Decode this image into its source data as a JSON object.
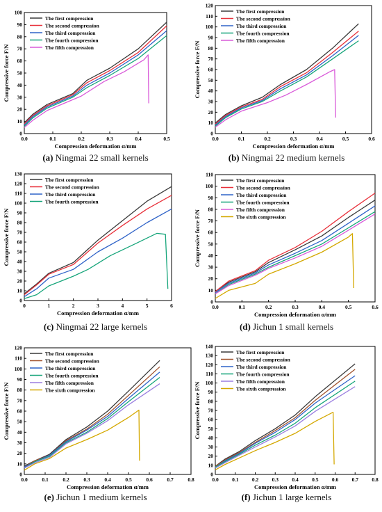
{
  "chart_data": [
    {
      "type": "line",
      "ylabel": "Compressive force F/N",
      "xlabel": "Compression deformation α/mm",
      "ylim": [
        0,
        100
      ],
      "yticks": [
        0,
        10,
        20,
        30,
        40,
        50,
        60,
        70,
        80,
        90,
        100
      ],
      "xlim": [
        0,
        0.5
      ],
      "xticks": [
        0.0,
        0.1,
        0.2,
        0.3,
        0.4,
        0.5
      ],
      "xdec": 1,
      "caption_letter": "(a)",
      "caption_text": " Ningmai 22 small kernels",
      "series": [
        {
          "name": "The first compression",
          "color": "#3a3a3a",
          "x": [
            0,
            0.03,
            0.08,
            0.17,
            0.22,
            0.3,
            0.4,
            0.5
          ],
          "y": [
            9,
            16,
            24,
            33,
            44,
            54,
            70,
            92
          ]
        },
        {
          "name": "The second compression",
          "color": "#e8303a",
          "x": [
            0,
            0.03,
            0.08,
            0.17,
            0.22,
            0.3,
            0.4,
            0.5
          ],
          "y": [
            8,
            15,
            23,
            32,
            42,
            52,
            67,
            89
          ]
        },
        {
          "name": "The third compression",
          "color": "#2f63c8",
          "x": [
            0,
            0.03,
            0.08,
            0.17,
            0.22,
            0.3,
            0.4,
            0.5
          ],
          "y": [
            7,
            14,
            22,
            31,
            40,
            50,
            65,
            85
          ]
        },
        {
          "name": "The fourth compression",
          "color": "#16a57a",
          "x": [
            0,
            0.03,
            0.08,
            0.17,
            0.22,
            0.3,
            0.4,
            0.5
          ],
          "y": [
            6,
            13,
            21,
            30,
            38,
            48,
            62,
            81
          ]
        },
        {
          "name": "The fifth compression",
          "color": "#d95bd9",
          "x": [
            0,
            0.03,
            0.08,
            0.2,
            0.28,
            0.35,
            0.42,
            0.435,
            0.437
          ],
          "y": [
            5,
            11,
            19,
            31,
            43,
            51,
            61,
            65,
            25
          ]
        }
      ]
    },
    {
      "type": "line",
      "ylabel": "Compressive force F/N",
      "xlabel": "Compression deformation α/mm",
      "ylim": [
        0,
        120
      ],
      "yticks": [
        0,
        10,
        20,
        30,
        40,
        50,
        60,
        70,
        80,
        90,
        100,
        110,
        120
      ],
      "xlim": [
        0,
        0.6
      ],
      "xticks": [
        0.0,
        0.1,
        0.2,
        0.3,
        0.4,
        0.5,
        0.6
      ],
      "xdec": 1,
      "caption_letter": "(b)",
      "caption_text": " Ningmai 22 medium kernels",
      "series": [
        {
          "name": "The first compression",
          "color": "#3a3a3a",
          "x": [
            0,
            0.04,
            0.1,
            0.18,
            0.25,
            0.35,
            0.45,
            0.55
          ],
          "y": [
            10,
            18,
            26,
            34,
            46,
            60,
            80,
            103
          ]
        },
        {
          "name": "The second compression",
          "color": "#e8303a",
          "x": [
            0,
            0.04,
            0.1,
            0.18,
            0.25,
            0.35,
            0.45,
            0.55
          ],
          "y": [
            9,
            17,
            25,
            32,
            44,
            57,
            76,
            96
          ]
        },
        {
          "name": "The third compression",
          "color": "#2f63c8",
          "x": [
            0,
            0.04,
            0.1,
            0.18,
            0.25,
            0.35,
            0.45,
            0.55
          ],
          "y": [
            8,
            16,
            24,
            31,
            42,
            55,
            73,
            92
          ]
        },
        {
          "name": "The fourth compression",
          "color": "#16a57a",
          "x": [
            0,
            0.04,
            0.1,
            0.18,
            0.25,
            0.35,
            0.45,
            0.55
          ],
          "y": [
            7,
            15,
            23,
            30,
            40,
            53,
            70,
            87
          ]
        },
        {
          "name": "The fifth compression",
          "color": "#d95bd9",
          "x": [
            0,
            0.04,
            0.1,
            0.2,
            0.27,
            0.35,
            0.44,
            0.458,
            0.462
          ],
          "y": [
            6,
            13,
            21,
            29,
            36,
            46,
            58,
            60,
            15
          ]
        }
      ]
    },
    {
      "type": "line",
      "ylabel": "Compressive force F/N",
      "xlabel": "Compression deformation α/mm",
      "ylim": [
        0,
        130
      ],
      "yticks": [
        0,
        10,
        20,
        30,
        40,
        50,
        60,
        70,
        80,
        90,
        100,
        110,
        120,
        130
      ],
      "xlim": [
        0,
        6
      ],
      "xticks": [
        0,
        1,
        2,
        3,
        4,
        5,
        6
      ],
      "xdec": 0,
      "caption_letter": "(c)",
      "caption_text": " Ningmai 22 large kernels",
      "series": [
        {
          "name": "The first compression",
          "color": "#3a3a3a",
          "x": [
            0,
            0.5,
            1,
            2,
            3,
            4,
            5,
            6
          ],
          "y": [
            7,
            17,
            28,
            39,
            62,
            82,
            102,
            117
          ]
        },
        {
          "name": "The second compression",
          "color": "#e8303a",
          "x": [
            0,
            0.5,
            1,
            2,
            3,
            4,
            5,
            6
          ],
          "y": [
            6,
            16,
            27,
            37,
            59,
            77,
            94,
            108
          ]
        },
        {
          "name": "The third compression",
          "color": "#2f63c8",
          "x": [
            0,
            0.5,
            1,
            2,
            3,
            4,
            5,
            6
          ],
          "y": [
            4,
            12,
            23,
            32,
            50,
            64,
            80,
            94
          ]
        },
        {
          "name": "The fourth compression",
          "color": "#16a57a",
          "x": [
            0,
            0.5,
            1,
            2,
            2.6,
            3.5,
            4.5,
            5.4,
            5.75,
            5.85
          ],
          "y": [
            2,
            6,
            15,
            25,
            32,
            46,
            58,
            69,
            68,
            12
          ]
        }
      ]
    },
    {
      "type": "line",
      "ylabel": "Compressive force F/N",
      "xlabel": "Compression deformation α/mm",
      "ylim": [
        0,
        110
      ],
      "yticks": [
        0,
        10,
        20,
        30,
        40,
        50,
        60,
        70,
        80,
        90,
        100,
        110
      ],
      "xlim": [
        0,
        0.6
      ],
      "xticks": [
        0.0,
        0.1,
        0.2,
        0.3,
        0.4,
        0.5,
        0.6
      ],
      "xdec": 1,
      "caption_letter": "(d)",
      "caption_text": " Jichun 1 small kernels",
      "series": [
        {
          "name": "The first compression",
          "color": "#3a3a3a",
          "x": [
            0,
            0.05,
            0.15,
            0.2,
            0.3,
            0.4,
            0.5,
            0.6
          ],
          "y": [
            9,
            17,
            26,
            34,
            45,
            57,
            73,
            88
          ]
        },
        {
          "name": "The second compression",
          "color": "#e8303a",
          "x": [
            0,
            0.05,
            0.15,
            0.2,
            0.3,
            0.4,
            0.5,
            0.6
          ],
          "y": [
            9,
            18,
            27,
            36,
            47,
            61,
            78,
            94
          ]
        },
        {
          "name": "The third compression",
          "color": "#2f63c8",
          "x": [
            0,
            0.05,
            0.15,
            0.2,
            0.3,
            0.4,
            0.5,
            0.6
          ],
          "y": [
            8,
            16,
            25,
            32,
            42,
            53,
            68,
            83
          ]
        },
        {
          "name": "The fourth compression",
          "color": "#16a57a",
          "x": [
            0,
            0.05,
            0.15,
            0.2,
            0.3,
            0.4,
            0.5,
            0.6
          ],
          "y": [
            7,
            15,
            24,
            30,
            40,
            50,
            64,
            78
          ]
        },
        {
          "name": "The fifth compression",
          "color": "#d95bd9",
          "x": [
            0,
            0.05,
            0.15,
            0.2,
            0.3,
            0.4,
            0.5,
            0.6
          ],
          "y": [
            7,
            14,
            23,
            29,
            38,
            48,
            62,
            76
          ]
        },
        {
          "name": "The sixth compression",
          "color": "#d4a800",
          "x": [
            0,
            0.05,
            0.15,
            0.2,
            0.3,
            0.4,
            0.5,
            0.515,
            0.52
          ],
          "y": [
            3,
            10,
            16,
            24,
            33,
            43,
            56,
            59,
            12
          ]
        }
      ]
    },
    {
      "type": "line",
      "ylabel": "Compressive force F/N",
      "xlabel": "Compression deformation α/mm",
      "ylim": [
        0,
        120
      ],
      "yticks": [
        0,
        10,
        20,
        30,
        40,
        50,
        60,
        70,
        80,
        90,
        100,
        110,
        120
      ],
      "xlim": [
        0,
        0.8
      ],
      "xticks": [
        0.0,
        0.1,
        0.2,
        0.3,
        0.4,
        0.5,
        0.6,
        0.7,
        0.8
      ],
      "xdec": 1,
      "caption_letter": "(e)",
      "caption_text": " Jichun 1 medium kernels",
      "series": [
        {
          "name": "The first compression",
          "color": "#3a3a3a",
          "x": [
            0,
            0.05,
            0.12,
            0.2,
            0.3,
            0.4,
            0.5,
            0.65
          ],
          "y": [
            8,
            13,
            19,
            33,
            45,
            60,
            79,
            108
          ]
        },
        {
          "name": "The second compression",
          "color": "#a0522d",
          "x": [
            0,
            0.05,
            0.12,
            0.2,
            0.3,
            0.4,
            0.5,
            0.65
          ],
          "y": [
            7,
            13,
            18,
            32,
            43,
            57,
            75,
            102
          ]
        },
        {
          "name": "The third compression",
          "color": "#2f63c8",
          "x": [
            0,
            0.05,
            0.12,
            0.2,
            0.3,
            0.4,
            0.5,
            0.65
          ],
          "y": [
            7,
            12,
            18,
            31,
            42,
            55,
            72,
            97
          ]
        },
        {
          "name": "The fourth compression",
          "color": "#16a57a",
          "x": [
            0,
            0.05,
            0.12,
            0.2,
            0.3,
            0.4,
            0.5,
            0.65
          ],
          "y": [
            6,
            12,
            17,
            30,
            40,
            53,
            69,
            92
          ]
        },
        {
          "name": "The fifth compression",
          "color": "#9b7fe0",
          "x": [
            0,
            0.05,
            0.12,
            0.2,
            0.3,
            0.4,
            0.5,
            0.65
          ],
          "y": [
            6,
            11,
            16,
            29,
            39,
            51,
            66,
            86
          ]
        },
        {
          "name": "The sixth compression",
          "color": "#d4a800",
          "x": [
            0,
            0.05,
            0.12,
            0.2,
            0.3,
            0.4,
            0.5,
            0.55,
            0.553
          ],
          "y": [
            4,
            10,
            15,
            25,
            33,
            42,
            54,
            61,
            13
          ]
        }
      ]
    },
    {
      "type": "line",
      "ylabel": "Compressive force F/N",
      "xlabel": "Compression deformation α/mm",
      "ylim": [
        0,
        140
      ],
      "yticks": [
        0,
        10,
        20,
        30,
        40,
        50,
        60,
        70,
        80,
        90,
        100,
        110,
        120,
        130,
        140
      ],
      "xlim": [
        0,
        0.8
      ],
      "xticks": [
        0.0,
        0.1,
        0.2,
        0.3,
        0.4,
        0.5,
        0.6,
        0.7,
        0.8
      ],
      "xdec": 1,
      "caption_letter": "(f)",
      "caption_text": " Jichun 1 large kernels",
      "series": [
        {
          "name": "The first compression",
          "color": "#3a3a3a",
          "x": [
            0,
            0.05,
            0.12,
            0.2,
            0.3,
            0.4,
            0.5,
            0.7
          ],
          "y": [
            9,
            17,
            25,
            37,
            50,
            65,
            85,
            121
          ]
        },
        {
          "name": "The second compression",
          "color": "#a0522d",
          "x": [
            0,
            0.05,
            0.12,
            0.2,
            0.3,
            0.4,
            0.5,
            0.7
          ],
          "y": [
            9,
            16,
            24,
            35,
            48,
            62,
            81,
            115
          ]
        },
        {
          "name": "The third compression",
          "color": "#2f63c8",
          "x": [
            0,
            0.05,
            0.12,
            0.2,
            0.3,
            0.4,
            0.5,
            0.7
          ],
          "y": [
            8,
            15,
            23,
            34,
            46,
            60,
            78,
            108
          ]
        },
        {
          "name": "The fourth compression",
          "color": "#16a57a",
          "x": [
            0,
            0.05,
            0.12,
            0.2,
            0.3,
            0.4,
            0.5,
            0.7
          ],
          "y": [
            8,
            14,
            22,
            32,
            43,
            56,
            73,
            102
          ]
        },
        {
          "name": "The fifth compression",
          "color": "#9b7fe0",
          "x": [
            0,
            0.05,
            0.12,
            0.2,
            0.3,
            0.4,
            0.5,
            0.7
          ],
          "y": [
            7,
            13,
            21,
            30,
            41,
            53,
            69,
            96
          ]
        },
        {
          "name": "The sixth compression",
          "color": "#d4a800",
          "x": [
            0,
            0.05,
            0.12,
            0.2,
            0.3,
            0.4,
            0.5,
            0.59,
            0.595
          ],
          "y": [
            5,
            11,
            18,
            26,
            35,
            45,
            58,
            68,
            11
          ]
        }
      ]
    }
  ]
}
